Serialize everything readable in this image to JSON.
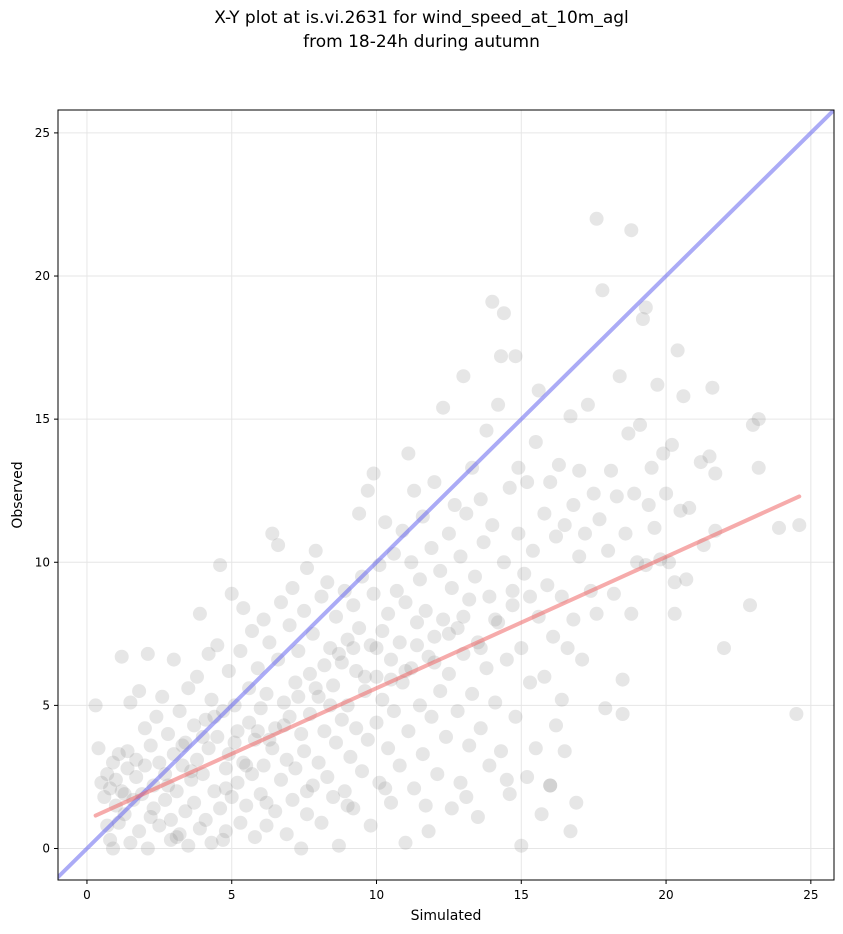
{
  "chart_data": {
    "type": "scatter",
    "title": "X-Y plot at is.vi.2631 for wind_speed_at_10m_agl",
    "subtitle": "from 18-24h during autumn",
    "xlabel": "Simulated",
    "ylabel": "Observed",
    "xlim": [
      -1,
      25.8
    ],
    "ylim": [
      -1.1,
      25.8
    ],
    "xticks": [
      "0",
      "5",
      "10",
      "15",
      "20",
      "25"
    ],
    "yticks": [
      "0",
      "5",
      "10",
      "15",
      "20",
      "25"
    ],
    "grid": true,
    "point_color": "#808080",
    "identity_line": {
      "x": [
        -1,
        25.8
      ],
      "y": [
        -1,
        25.8
      ],
      "color": "#6666ee"
    },
    "fit_line": {
      "x": [
        0.3,
        24.6
      ],
      "y": [
        1.15,
        12.3
      ],
      "color": "#ee6666"
    },
    "points": [
      [
        0.3,
        5.0
      ],
      [
        0.4,
        3.5
      ],
      [
        0.5,
        2.3
      ],
      [
        0.6,
        1.8
      ],
      [
        0.7,
        2.6
      ],
      [
        0.7,
        0.8
      ],
      [
        0.8,
        0.3
      ],
      [
        0.8,
        2.1
      ],
      [
        0.9,
        0.0
      ],
      [
        0.9,
        3.0
      ],
      [
        1.0,
        1.5
      ],
      [
        1.0,
        2.4
      ],
      [
        1.1,
        3.3
      ],
      [
        1.1,
        0.9
      ],
      [
        1.2,
        6.7
      ],
      [
        1.2,
        2.0
      ],
      [
        1.3,
        1.2
      ],
      [
        1.4,
        2.8
      ],
      [
        1.4,
        3.4
      ],
      [
        1.5,
        0.2
      ],
      [
        1.5,
        5.1
      ],
      [
        1.6,
        1.7
      ],
      [
        1.7,
        2.5
      ],
      [
        1.7,
        3.1
      ],
      [
        1.8,
        5.5
      ],
      [
        1.8,
        0.6
      ],
      [
        1.9,
        1.9
      ],
      [
        2.0,
        4.2
      ],
      [
        2.0,
        2.9
      ],
      [
        2.1,
        6.8
      ],
      [
        2.1,
        0.0
      ],
      [
        2.2,
        3.6
      ],
      [
        2.3,
        1.4
      ],
      [
        2.3,
        2.2
      ],
      [
        2.4,
        4.6
      ],
      [
        2.5,
        0.8
      ],
      [
        2.5,
        3.0
      ],
      [
        2.6,
        5.3
      ],
      [
        2.7,
        1.7
      ],
      [
        2.7,
        2.6
      ],
      [
        2.8,
        4.0
      ],
      [
        2.9,
        0.3
      ],
      [
        2.9,
        1.0
      ],
      [
        3.0,
        3.3
      ],
      [
        3.0,
        6.6
      ],
      [
        3.1,
        2.0
      ],
      [
        3.2,
        4.8
      ],
      [
        3.2,
        0.5
      ],
      [
        3.3,
        2.9
      ],
      [
        3.4,
        3.7
      ],
      [
        3.4,
        1.3
      ],
      [
        3.5,
        5.6
      ],
      [
        3.5,
        0.1
      ],
      [
        3.6,
        2.4
      ],
      [
        3.7,
        4.3
      ],
      [
        3.7,
        1.6
      ],
      [
        3.8,
        6.0
      ],
      [
        3.8,
        3.1
      ],
      [
        3.9,
        0.7
      ],
      [
        3.9,
        8.2
      ],
      [
        4.0,
        2.6
      ],
      [
        4.1,
        4.5
      ],
      [
        4.1,
        1.0
      ],
      [
        4.2,
        3.5
      ],
      [
        4.2,
        6.8
      ],
      [
        4.3,
        0.2
      ],
      [
        4.3,
        5.2
      ],
      [
        4.4,
        2.0
      ],
      [
        4.5,
        3.9
      ],
      [
        4.5,
        7.1
      ],
      [
        4.6,
        1.4
      ],
      [
        4.6,
        9.9
      ],
      [
        4.7,
        4.8
      ],
      [
        4.8,
        2.8
      ],
      [
        4.8,
        0.6
      ],
      [
        4.9,
        6.2
      ],
      [
        4.9,
        3.3
      ],
      [
        5.0,
        8.9
      ],
      [
        5.0,
        1.8
      ],
      [
        5.1,
        5.0
      ],
      [
        5.2,
        2.3
      ],
      [
        5.2,
        4.1
      ],
      [
        5.3,
        0.9
      ],
      [
        5.3,
        6.9
      ],
      [
        5.4,
        3.0
      ],
      [
        5.4,
        8.4
      ],
      [
        5.5,
        1.5
      ],
      [
        5.6,
        5.6
      ],
      [
        5.6,
        4.4
      ],
      [
        5.7,
        2.6
      ],
      [
        5.7,
        7.6
      ],
      [
        5.8,
        0.4
      ],
      [
        5.8,
        3.8
      ],
      [
        5.9,
        6.3
      ],
      [
        6.0,
        1.9
      ],
      [
        6.0,
        4.9
      ],
      [
        6.1,
        8.0
      ],
      [
        6.1,
        2.9
      ],
      [
        6.2,
        5.4
      ],
      [
        6.2,
        0.8
      ],
      [
        6.3,
        7.2
      ],
      [
        6.4,
        3.5
      ],
      [
        6.4,
        11.0
      ],
      [
        6.5,
        4.2
      ],
      [
        6.5,
        1.3
      ],
      [
        6.6,
        6.6
      ],
      [
        6.6,
        10.6
      ],
      [
        6.7,
        2.4
      ],
      [
        6.7,
        8.6
      ],
      [
        6.8,
        5.1
      ],
      [
        6.9,
        3.1
      ],
      [
        6.9,
        0.5
      ],
      [
        7.0,
        7.8
      ],
      [
        7.0,
        4.6
      ],
      [
        7.1,
        1.7
      ],
      [
        7.1,
        9.1
      ],
      [
        7.2,
        5.8
      ],
      [
        7.2,
        2.8
      ],
      [
        7.3,
        6.9
      ],
      [
        7.4,
        0.0
      ],
      [
        7.4,
        4.0
      ],
      [
        7.5,
        8.3
      ],
      [
        7.5,
        3.4
      ],
      [
        7.6,
        9.8
      ],
      [
        7.6,
        1.2
      ],
      [
        7.7,
        6.1
      ],
      [
        7.7,
        4.7
      ],
      [
        7.8,
        2.2
      ],
      [
        7.8,
        7.5
      ],
      [
        7.9,
        10.4
      ],
      [
        8.0,
        5.3
      ],
      [
        8.0,
        3.0
      ],
      [
        8.1,
        8.8
      ],
      [
        8.1,
        0.9
      ],
      [
        8.2,
        6.4
      ],
      [
        8.2,
        4.1
      ],
      [
        8.3,
        2.5
      ],
      [
        8.3,
        9.3
      ],
      [
        8.4,
        7.0
      ],
      [
        8.5,
        1.8
      ],
      [
        8.5,
        5.7
      ],
      [
        8.6,
        3.7
      ],
      [
        8.6,
        8.1
      ],
      [
        8.7,
        0.1
      ],
      [
        8.7,
        6.8
      ],
      [
        8.8,
        4.5
      ],
      [
        8.9,
        2.0
      ],
      [
        8.9,
        9.0
      ],
      [
        9.0,
        7.3
      ],
      [
        9.0,
        5.0
      ],
      [
        9.1,
        3.2
      ],
      [
        9.2,
        8.5
      ],
      [
        9.2,
        1.4
      ],
      [
        9.3,
        6.2
      ],
      [
        9.3,
        4.2
      ],
      [
        9.4,
        11.7
      ],
      [
        9.4,
        7.7
      ],
      [
        9.5,
        2.7
      ],
      [
        9.5,
        9.5
      ],
      [
        9.6,
        5.5
      ],
      [
        9.7,
        12.5
      ],
      [
        9.7,
        3.8
      ],
      [
        9.8,
        7.1
      ],
      [
        9.8,
        0.8
      ],
      [
        9.9,
        13.1
      ],
      [
        9.9,
        8.9
      ],
      [
        10.0,
        6.0
      ],
      [
        10.0,
        4.4
      ],
      [
        10.1,
        2.3
      ],
      [
        10.1,
        9.9
      ],
      [
        10.2,
        7.6
      ],
      [
        10.2,
        5.2
      ],
      [
        10.3,
        11.4
      ],
      [
        10.4,
        3.5
      ],
      [
        10.4,
        8.2
      ],
      [
        10.5,
        1.6
      ],
      [
        10.5,
        6.6
      ],
      [
        10.6,
        10.3
      ],
      [
        10.6,
        4.8
      ],
      [
        10.7,
        9.0
      ],
      [
        10.8,
        2.9
      ],
      [
        10.8,
        7.2
      ],
      [
        10.9,
        11.1
      ],
      [
        10.9,
        5.8
      ],
      [
        11.0,
        0.2
      ],
      [
        11.0,
        8.6
      ],
      [
        11.1,
        13.8
      ],
      [
        11.1,
        4.1
      ],
      [
        11.2,
        10.0
      ],
      [
        11.2,
        6.3
      ],
      [
        11.3,
        12.5
      ],
      [
        11.3,
        2.1
      ],
      [
        11.4,
        7.9
      ],
      [
        11.5,
        9.4
      ],
      [
        11.5,
        5.0
      ],
      [
        11.6,
        11.6
      ],
      [
        11.6,
        3.3
      ],
      [
        11.7,
        8.3
      ],
      [
        11.8,
        6.7
      ],
      [
        11.8,
        0.6
      ],
      [
        11.9,
        10.5
      ],
      [
        11.9,
        4.6
      ],
      [
        12.0,
        12.8
      ],
      [
        12.0,
        7.4
      ],
      [
        12.1,
        2.6
      ],
      [
        12.2,
        9.7
      ],
      [
        12.2,
        5.5
      ],
      [
        12.3,
        15.4
      ],
      [
        12.3,
        8.0
      ],
      [
        12.4,
        3.9
      ],
      [
        12.5,
        11.0
      ],
      [
        12.5,
        6.1
      ],
      [
        12.6,
        1.4
      ],
      [
        12.6,
        9.1
      ],
      [
        12.7,
        12.0
      ],
      [
        12.8,
        4.8
      ],
      [
        12.8,
        7.7
      ],
      [
        12.9,
        10.2
      ],
      [
        12.9,
        2.3
      ],
      [
        13.0,
        16.5
      ],
      [
        13.0,
        6.8
      ],
      [
        13.1,
        11.7
      ],
      [
        13.2,
        8.7
      ],
      [
        13.2,
        3.6
      ],
      [
        13.3,
        5.4
      ],
      [
        13.3,
        13.3
      ],
      [
        13.4,
        9.5
      ],
      [
        13.5,
        1.1
      ],
      [
        13.5,
        7.2
      ],
      [
        13.6,
        12.2
      ],
      [
        13.6,
        4.2
      ],
      [
        13.7,
        10.7
      ],
      [
        13.8,
        14.6
      ],
      [
        13.8,
        6.3
      ],
      [
        13.9,
        2.9
      ],
      [
        13.9,
        8.8
      ],
      [
        14.0,
        19.1
      ],
      [
        14.0,
        11.3
      ],
      [
        14.1,
        5.1
      ],
      [
        14.2,
        15.5
      ],
      [
        14.2,
        7.9
      ],
      [
        14.3,
        17.2
      ],
      [
        14.3,
        3.4
      ],
      [
        14.4,
        18.7
      ],
      [
        14.4,
        10.0
      ],
      [
        14.5,
        6.6
      ],
      [
        14.6,
        12.6
      ],
      [
        14.6,
        1.9
      ],
      [
        14.7,
        8.5
      ],
      [
        14.8,
        17.2
      ],
      [
        14.8,
        4.6
      ],
      [
        14.9,
        11.0
      ],
      [
        14.9,
        13.3
      ],
      [
        15.0,
        7.0
      ],
      [
        15.0,
        0.1
      ],
      [
        15.1,
        9.6
      ],
      [
        15.2,
        2.5
      ],
      [
        15.2,
        12.8
      ],
      [
        15.3,
        5.8
      ],
      [
        15.4,
        10.4
      ],
      [
        15.5,
        14.2
      ],
      [
        15.5,
        3.5
      ],
      [
        15.6,
        16.0
      ],
      [
        15.6,
        8.1
      ],
      [
        15.7,
        1.2
      ],
      [
        15.8,
        11.7
      ],
      [
        15.8,
        6.0
      ],
      [
        15.9,
        9.2
      ],
      [
        16.0,
        2.2
      ],
      [
        16.0,
        12.8
      ],
      [
        16.1,
        7.4
      ],
      [
        16.2,
        4.3
      ],
      [
        16.2,
        10.9
      ],
      [
        16.3,
        13.4
      ],
      [
        16.4,
        5.2
      ],
      [
        16.4,
        8.8
      ],
      [
        16.5,
        3.4
      ],
      [
        16.5,
        11.3
      ],
      [
        16.6,
        7.0
      ],
      [
        16.7,
        15.1
      ],
      [
        16.7,
        0.6
      ],
      [
        16.8,
        12.0
      ],
      [
        16.8,
        8.0
      ],
      [
        16.9,
        1.6
      ],
      [
        17.0,
        10.2
      ],
      [
        17.0,
        13.2
      ],
      [
        17.1,
        6.6
      ],
      [
        17.2,
        11.0
      ],
      [
        17.3,
        15.5
      ],
      [
        17.4,
        9.0
      ],
      [
        17.5,
        12.4
      ],
      [
        17.6,
        22.0
      ],
      [
        17.6,
        8.2
      ],
      [
        17.7,
        11.5
      ],
      [
        17.8,
        19.5
      ],
      [
        17.9,
        4.9
      ],
      [
        18.0,
        10.4
      ],
      [
        18.1,
        13.2
      ],
      [
        18.2,
        8.9
      ],
      [
        18.3,
        12.3
      ],
      [
        18.4,
        16.5
      ],
      [
        18.5,
        4.7
      ],
      [
        18.5,
        5.9
      ],
      [
        18.6,
        11.0
      ],
      [
        18.7,
        14.5
      ],
      [
        18.8,
        21.6
      ],
      [
        18.8,
        8.2
      ],
      [
        18.9,
        12.4
      ],
      [
        19.0,
        10.0
      ],
      [
        19.1,
        14.8
      ],
      [
        19.2,
        18.5
      ],
      [
        19.3,
        9.9
      ],
      [
        19.3,
        18.9
      ],
      [
        19.4,
        12.0
      ],
      [
        19.5,
        13.3
      ],
      [
        19.6,
        11.2
      ],
      [
        19.7,
        16.2
      ],
      [
        19.8,
        10.1
      ],
      [
        19.9,
        13.8
      ],
      [
        20.0,
        12.4
      ],
      [
        20.1,
        10.0
      ],
      [
        20.2,
        14.1
      ],
      [
        20.3,
        9.3
      ],
      [
        20.3,
        8.2
      ],
      [
        20.4,
        17.4
      ],
      [
        20.5,
        11.8
      ],
      [
        20.6,
        15.8
      ],
      [
        20.7,
        9.4
      ],
      [
        20.8,
        11.9
      ],
      [
        21.2,
        13.5
      ],
      [
        21.3,
        10.6
      ],
      [
        21.5,
        13.7
      ],
      [
        21.6,
        16.1
      ],
      [
        21.7,
        13.1
      ],
      [
        21.7,
        11.1
      ],
      [
        22.0,
        7.0
      ],
      [
        22.9,
        8.5
      ],
      [
        23.0,
        14.8
      ],
      [
        23.2,
        13.3
      ],
      [
        23.2,
        15.0
      ],
      [
        23.9,
        11.2
      ],
      [
        24.5,
        4.7
      ],
      [
        24.6,
        11.3
      ],
      [
        1.3,
        1.9
      ],
      [
        2.2,
        1.1
      ],
      [
        2.8,
        2.2
      ],
      [
        3.3,
        3.6
      ],
      [
        3.6,
        2.7
      ],
      [
        4.0,
        3.9
      ],
      [
        4.4,
        4.6
      ],
      [
        4.8,
        2.1
      ],
      [
        5.1,
        3.7
      ],
      [
        5.5,
        2.9
      ],
      [
        5.9,
        4.1
      ],
      [
        6.3,
        3.8
      ],
      [
        6.8,
        4.3
      ],
      [
        7.3,
        5.3
      ],
      [
        7.9,
        5.6
      ],
      [
        8.4,
        5.0
      ],
      [
        8.8,
        6.5
      ],
      [
        9.2,
        7.0
      ],
      [
        9.6,
        6.0
      ],
      [
        10.0,
        7.0
      ],
      [
        10.5,
        5.9
      ],
      [
        11.0,
        6.2
      ],
      [
        11.4,
        7.1
      ],
      [
        12.0,
        6.5
      ],
      [
        12.5,
        7.5
      ],
      [
        13.0,
        8.1
      ],
      [
        13.6,
        7.0
      ],
      [
        14.1,
        8.0
      ],
      [
        14.7,
        9.0
      ],
      [
        15.3,
        8.8
      ],
      [
        3.1,
        0.4
      ],
      [
        4.7,
        0.3
      ],
      [
        6.2,
        1.6
      ],
      [
        7.6,
        2.0
      ],
      [
        9.0,
        1.5
      ],
      [
        10.3,
        2.1
      ],
      [
        11.7,
        1.5
      ],
      [
        13.1,
        1.8
      ],
      [
        14.5,
        2.4
      ],
      [
        16.0,
        2.2
      ]
    ]
  }
}
